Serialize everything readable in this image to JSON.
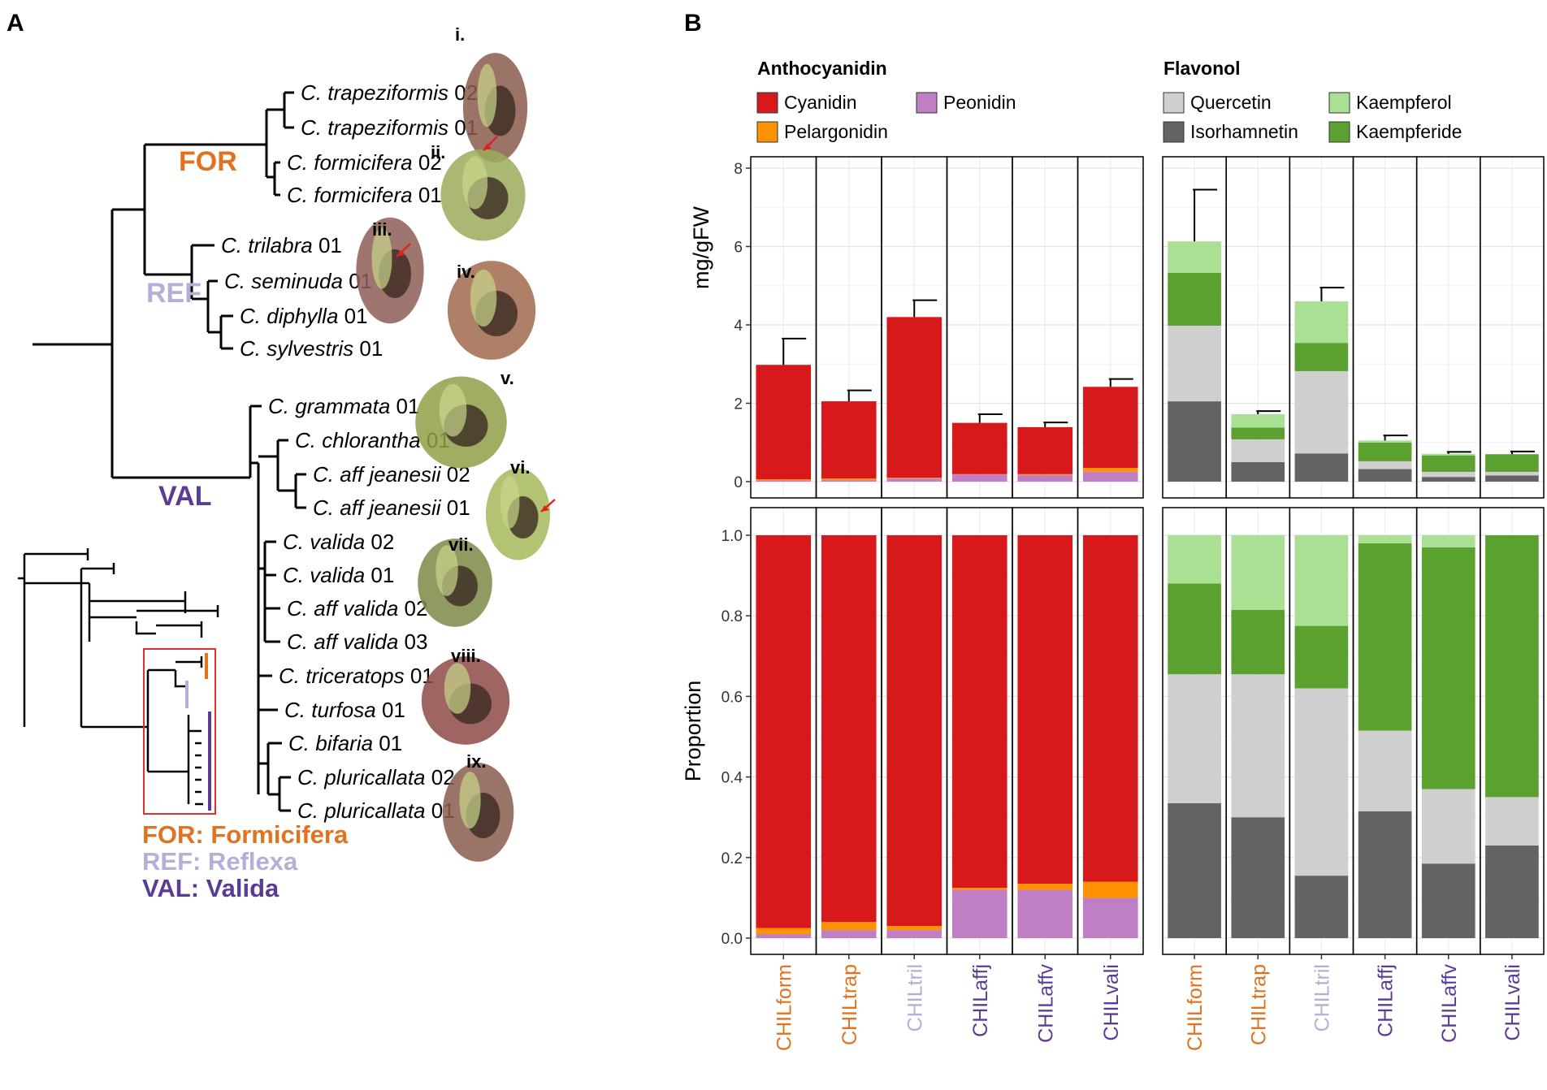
{
  "figure": {
    "panel_a_letter": "A",
    "panel_b_letter": "B"
  },
  "colors": {
    "FOR": "#e07320",
    "REF": "#b3b0d8",
    "VAL": "#5b3c94",
    "Cyanidin": "#d7191c",
    "Pelargonidin": "#ff9200",
    "Peonidin": "#c07fc5",
    "Quercetin": "#cfcfcf",
    "Isorhamnetin": "#636363",
    "Kaempferol": "#a9e094",
    "Kaempferide": "#5aa12f",
    "highlight_box": "#e03030"
  },
  "tree": {
    "clades": [
      {
        "code": "FOR",
        "color_key": "FOR"
      },
      {
        "code": "REF",
        "color_key": "REF"
      },
      {
        "code": "VAL",
        "color_key": "VAL"
      }
    ],
    "taxa": [
      {
        "genus": "C.",
        "species": "trapeziformis",
        "sample": "02"
      },
      {
        "genus": "C.",
        "species": "trapeziformis",
        "sample": "01"
      },
      {
        "genus": "C.",
        "species": "formicifera",
        "sample": "02"
      },
      {
        "genus": "C.",
        "species": "formicifera",
        "sample": "01"
      },
      {
        "genus": "C.",
        "species": "trilabra",
        "sample": "01"
      },
      {
        "genus": "C.",
        "species": "seminuda",
        "sample": "01"
      },
      {
        "genus": "C.",
        "species": "diphylla",
        "sample": "01"
      },
      {
        "genus": "C.",
        "species": "sylvestris",
        "sample": "01"
      },
      {
        "genus": "C.",
        "species": "grammata",
        "sample": "01"
      },
      {
        "genus": "C.",
        "species": "chlorantha",
        "sample": "01"
      },
      {
        "genus": "C.",
        "species": "aff jeanesii",
        "sample": "02"
      },
      {
        "genus": "C.",
        "species": "aff jeanesii",
        "sample": "01"
      },
      {
        "genus": "C.",
        "species": "valida",
        "sample": "02"
      },
      {
        "genus": "C.",
        "species": "valida",
        "sample": "01"
      },
      {
        "genus": "C.",
        "species": "aff valida",
        "sample": "02"
      },
      {
        "genus": "C.",
        "species": "aff valida",
        "sample": "03"
      },
      {
        "genus": "C.",
        "species": "triceratops",
        "sample": "01"
      },
      {
        "genus": "C.",
        "species": "turfosa",
        "sample": "01"
      },
      {
        "genus": "C.",
        "species": "bifaria",
        "sample": "01"
      },
      {
        "genus": "C.",
        "species": "pluricallata",
        "sample": "02"
      },
      {
        "genus": "C.",
        "species": "pluricallata",
        "sample": "01"
      }
    ],
    "photos": [
      {
        "label": "i."
      },
      {
        "label": "ii."
      },
      {
        "label": "iii."
      },
      {
        "label": "iv."
      },
      {
        "label": "v."
      },
      {
        "label": "vi."
      },
      {
        "label": "vii."
      },
      {
        "label": "viii."
      },
      {
        "label": "ix."
      }
    ],
    "legend": [
      {
        "text": "FOR: Formicifera",
        "color_key": "FOR"
      },
      {
        "text": "REF: Reflexa",
        "color_key": "REF"
      },
      {
        "text": "VAL: Valida",
        "color_key": "VAL"
      }
    ]
  },
  "chart_data": [
    {
      "type": "bar",
      "stacked": true,
      "title": "Anthocyanidin",
      "ylabel": "mg/gFW",
      "ylim": [
        0,
        8
      ],
      "yticks": [
        0,
        2,
        4,
        6,
        8
      ],
      "categories": [
        "CHILform",
        "CHILtrap",
        "CHILtril",
        "CHILaffj",
        "CHILaffv",
        "CHILvali"
      ],
      "category_groups": [
        "FOR",
        "FOR",
        "REF",
        "VAL",
        "VAL",
        "VAL"
      ],
      "series": [
        {
          "name": "Peonidin",
          "values": [
            0.03,
            0.04,
            0.08,
            0.18,
            0.17,
            0.25
          ]
        },
        {
          "name": "Pelargonidin",
          "values": [
            0.03,
            0.04,
            0.02,
            0.01,
            0.02,
            0.1
          ]
        },
        {
          "name": "Cyanidin",
          "values": [
            2.92,
            1.97,
            4.1,
            1.31,
            1.2,
            2.07
          ]
        }
      ],
      "error_upper": [
        3.65,
        2.33,
        4.63,
        1.72,
        1.51,
        2.62
      ],
      "legend": [
        "Cyanidin",
        "Pelargonidin",
        "Peonidin"
      ]
    },
    {
      "type": "bar",
      "stacked": true,
      "title": "Flavonol",
      "ylabel": "",
      "ylim": [
        0,
        8
      ],
      "yticks": [
        0,
        2,
        4,
        6,
        8
      ],
      "categories": [
        "CHILform",
        "CHILtrap",
        "CHILtril",
        "CHILaffj",
        "CHILaffv",
        "CHILvali"
      ],
      "category_groups": [
        "FOR",
        "FOR",
        "REF",
        "VAL",
        "VAL",
        "VAL"
      ],
      "series": [
        {
          "name": "Isorhamnetin",
          "values": [
            2.05,
            0.5,
            0.72,
            0.32,
            0.12,
            0.16
          ]
        },
        {
          "name": "Quercetin",
          "values": [
            1.93,
            0.58,
            2.1,
            0.2,
            0.13,
            0.09
          ]
        },
        {
          "name": "Kaempferide",
          "values": [
            1.35,
            0.3,
            0.72,
            0.48,
            0.42,
            0.45
          ]
        },
        {
          "name": "Kaempferol",
          "values": [
            0.8,
            0.34,
            1.06,
            0.05,
            0.04,
            0.0
          ]
        }
      ],
      "error_upper": [
        7.45,
        1.8,
        4.95,
        1.18,
        0.76,
        0.77
      ],
      "legend": [
        "Quercetin",
        "Isorhamnetin",
        "Kaempferol",
        "Kaempferide"
      ]
    },
    {
      "type": "bar",
      "stacked": true,
      "title": "",
      "ylabel": "Proportion",
      "ylim": [
        0,
        1.0
      ],
      "yticks": [
        0.0,
        0.2,
        0.4,
        0.6,
        0.8,
        1.0
      ],
      "categories": [
        "CHILform",
        "CHILtrap",
        "CHILtril",
        "CHILaffj",
        "CHILaffv",
        "CHILvali"
      ],
      "series": [
        {
          "name": "Peonidin",
          "values": [
            0.01,
            0.02,
            0.02,
            0.12,
            0.12,
            0.1
          ]
        },
        {
          "name": "Pelargonidin",
          "values": [
            0.015,
            0.02,
            0.01,
            0.005,
            0.015,
            0.04
          ]
        },
        {
          "name": "Cyanidin",
          "values": [
            0.975,
            0.96,
            0.97,
            0.875,
            0.865,
            0.86
          ]
        }
      ]
    },
    {
      "type": "bar",
      "stacked": true,
      "title": "",
      "ylabel": "",
      "ylim": [
        0,
        1.0
      ],
      "yticks": [
        0.0,
        0.2,
        0.4,
        0.6,
        0.8,
        1.0
      ],
      "categories": [
        "CHILform",
        "CHILtrap",
        "CHILtril",
        "CHILaffj",
        "CHILaffv",
        "CHILvali"
      ],
      "series": [
        {
          "name": "Isorhamnetin",
          "values": [
            0.335,
            0.3,
            0.155,
            0.315,
            0.185,
            0.23
          ]
        },
        {
          "name": "Quercetin",
          "values": [
            0.32,
            0.355,
            0.465,
            0.2,
            0.185,
            0.12
          ]
        },
        {
          "name": "Kaempferide",
          "values": [
            0.225,
            0.16,
            0.155,
            0.465,
            0.6,
            0.65
          ]
        },
        {
          "name": "Kaempferol",
          "values": [
            0.12,
            0.185,
            0.225,
            0.02,
            0.03,
            0.0
          ]
        }
      ]
    }
  ]
}
